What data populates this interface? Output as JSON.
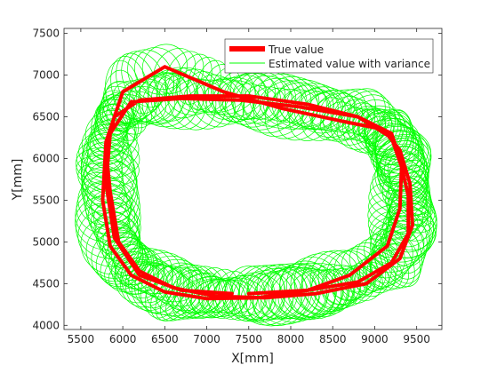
{
  "chart_data": {
    "type": "line",
    "title": "",
    "xlabel": "X[mm]",
    "ylabel": "Y[mm]",
    "xlim": [
      5300,
      9800
    ],
    "ylim": [
      3950,
      7560
    ],
    "xticks": [
      5500,
      6000,
      6500,
      7000,
      7500,
      8000,
      8500,
      9000,
      9500
    ],
    "yticks": [
      4000,
      4500,
      5000,
      5500,
      6000,
      6500,
      7000,
      7500
    ],
    "grid": false,
    "legend_position": "top-right",
    "colors": {
      "true": "#ff0000",
      "estimate": "#00ff00",
      "axes": "#262626"
    },
    "series": [
      {
        "name": "True value",
        "style": "thick-red-line",
        "x": [
          7500,
          8200,
          8800,
          9200,
          9400,
          9400,
          9300,
          9200,
          8800,
          8200,
          7500,
          6800,
          6200,
          5900,
          5800,
          5850,
          5950,
          6200,
          6600,
          7100,
          7700,
          8300,
          8900,
          9300,
          9450,
          9420,
          9300,
          9100,
          8600,
          7900,
          7200,
          6500,
          6000,
          5800,
          5760,
          5850,
          6100,
          6500,
          7000,
          7600,
          8200,
          8700,
          9150,
          9300,
          9320,
          9200,
          8800,
          8100,
          7400,
          6700,
          6100,
          5850,
          5800,
          5900,
          6200,
          6700,
          7300
        ],
        "y": [
          4380,
          4420,
          4520,
          4750,
          5100,
          5550,
          6000,
          6300,
          6500,
          6650,
          6750,
          6750,
          6700,
          6500,
          6100,
          5600,
          5000,
          4650,
          4450,
          4350,
          4330,
          4380,
          4500,
          4800,
          5200,
          5700,
          6100,
          6350,
          6450,
          6600,
          6800,
          7100,
          6800,
          6200,
          5500,
          4950,
          4600,
          4400,
          4320,
          4330,
          4420,
          4600,
          4950,
          5400,
          5900,
          6250,
          6500,
          6620,
          6700,
          6720,
          6680,
          6300,
          5700,
          5050,
          4600,
          4420,
          4380
        ]
      },
      {
        "name": "Estimated value with variance",
        "style": "green-covariance-ellipses",
        "rx_mm": 380,
        "ry_mm": 330
      }
    ]
  }
}
